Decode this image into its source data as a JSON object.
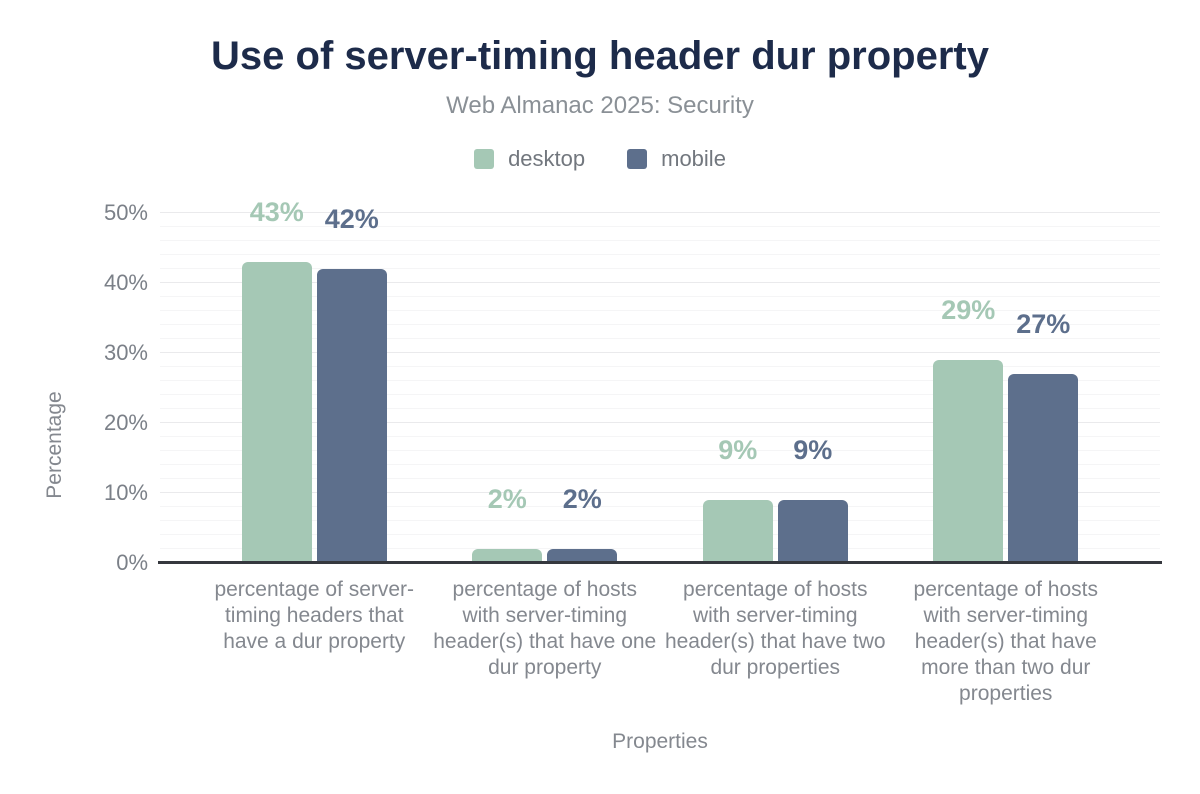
{
  "header": {
    "title": "Use of server-timing header dur property",
    "subtitle": "Web Almanac 2025: Security"
  },
  "colors": {
    "title_text": "#1d2b4a",
    "subtitle_text": "#8a9096",
    "axis_text": "#7b8088",
    "category_text": "#84888f",
    "legend_text": "#72777e",
    "desktop": "#a5c8b5",
    "mobile": "#5d6f8c",
    "axis_line": "#35383e",
    "background": "#ffffff"
  },
  "chart_data": {
    "type": "bar",
    "title": "Use of server-timing header dur property",
    "subtitle": "Web Almanac 2025: Security",
    "xlabel": "Properties",
    "ylabel": "Percentage",
    "ylim": [
      0,
      50
    ],
    "yticks": [
      "0%",
      "10%",
      "20%",
      "30%",
      "40%",
      "50%"
    ],
    "ytick_values": [
      0,
      10,
      20,
      30,
      40,
      50
    ],
    "grid": true,
    "legend_position": "top",
    "categories": [
      "percentage of server-timing headers that have a dur property",
      "percentage of hosts with server-timing header(s) that have one dur property",
      "percentage of hosts with server-timing header(s) that have two dur properties",
      "percentage of hosts with server-timing header(s) that have more than two dur properties"
    ],
    "series": [
      {
        "name": "desktop",
        "color": "#a5c8b5",
        "values": [
          43,
          2,
          9,
          29
        ],
        "labels": [
          "43%",
          "2%",
          "9%",
          "29%"
        ]
      },
      {
        "name": "mobile",
        "color": "#5d6f8c",
        "values": [
          42,
          2,
          9,
          27
        ],
        "labels": [
          "42%",
          "2%",
          "9%",
          "27%"
        ]
      }
    ]
  }
}
